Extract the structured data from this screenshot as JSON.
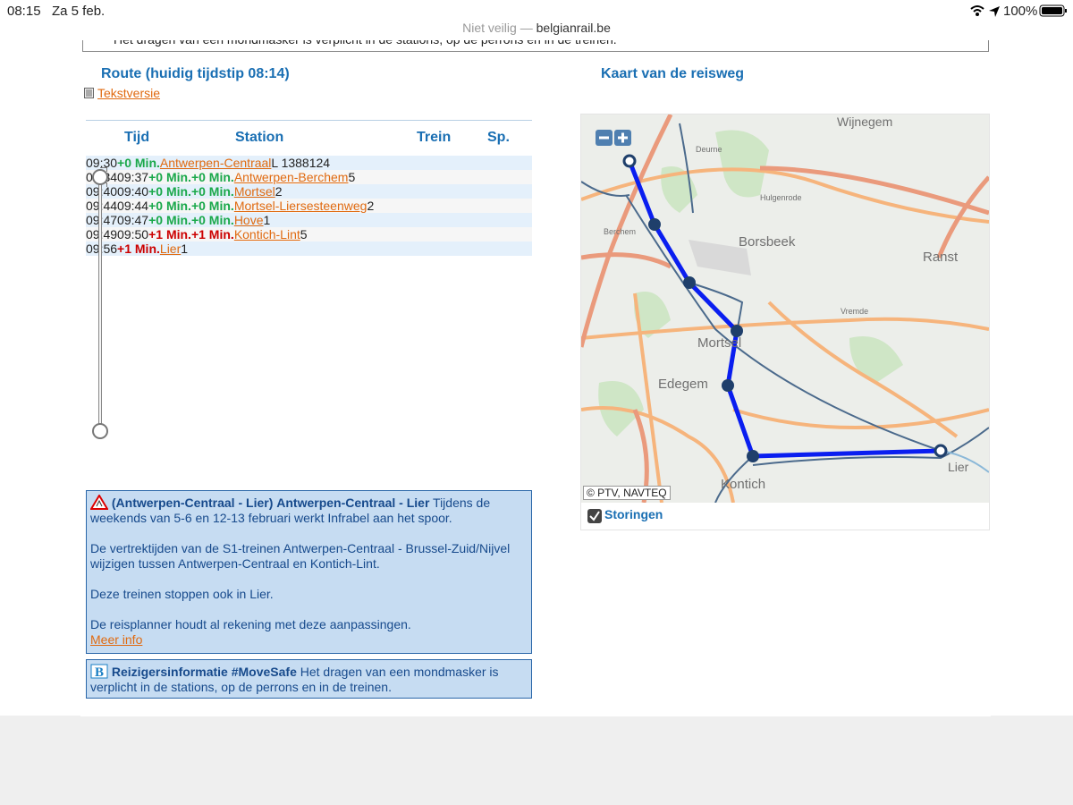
{
  "status_bar": {
    "time": "08:15",
    "date": "Za 5 feb.",
    "security": "Niet veilig —",
    "url": "belgianrail.be",
    "battery": "100%"
  },
  "top_notice": "Het dragen van een mondmasker is verplicht in de stations, op de perrons en in de treinen.",
  "route": {
    "title": "Route (huidig tijdstip 08:14)",
    "text_version": "Tekstversie",
    "headers": [
      "Tijd",
      "Station",
      "Trein",
      "Sp."
    ],
    "rows": [
      {
        "times": [
          "09:30"
        ],
        "delays": [
          "+0 Min."
        ],
        "delay_color": "#1aa84a",
        "station": "Antwerpen-Centraal",
        "train": "L 13881",
        "platform": "24"
      },
      {
        "times": [
          "09:34",
          "09:37"
        ],
        "delays": [
          "+0 Min.",
          "+0 Min."
        ],
        "delay_color": "#1aa84a",
        "station": "Antwerpen-Berchem",
        "platform": "5"
      },
      {
        "times": [
          "09:40",
          "09:40"
        ],
        "delays": [
          "+0 Min.",
          "+0 Min."
        ],
        "delay_color": "#1aa84a",
        "station": "Mortsel",
        "platform": "2"
      },
      {
        "times": [
          "09:44",
          "09:44"
        ],
        "delays": [
          "+0 Min.",
          "+0 Min."
        ],
        "delay_color": "#1aa84a",
        "station": "Mortsel-Liersesteenweg",
        "platform": "2"
      },
      {
        "times": [
          "09:47",
          "09:47"
        ],
        "delays": [
          "+0 Min.",
          "+0 Min."
        ],
        "delay_color": "#1aa84a",
        "station": "Hove",
        "platform": "1"
      },
      {
        "times": [
          "09:49",
          "09:50"
        ],
        "delays": [
          "+1 Min.",
          "+1 Min."
        ],
        "delay_color": "#cc0000",
        "station": "Kontich-Lint",
        "platform": "5"
      },
      {
        "times": [
          "09:56"
        ],
        "delays": [
          "+1 Min."
        ],
        "delay_color": "#cc0000",
        "station": "Lier",
        "platform": "1"
      }
    ]
  },
  "map": {
    "title": "Kaart van de reisweg",
    "labels": [
      "Wijnegem",
      "Deurne",
      "Hulgenrode",
      "Berchem",
      "Borsbeek",
      "Ranst",
      "Vremde",
      "Mortsel",
      "Edegem",
      "Kontich",
      "Lier"
    ],
    "copyright": "© PTV, NAVTEQ",
    "disruptions": "Storingen"
  },
  "notices": [
    {
      "route": "(Antwerpen-Centraal - Lier)",
      "title": "Antwerpen-Centraal - Lier",
      "paragraphs": [
        "Tijdens de weekends van 5-6 en 12-13 februari werkt Infrabel aan het spoor.",
        "De vertrektijden van de S1-treinen Antwerpen-Centraal - Brussel-Zuid/Nijvel wijzigen tussen Antwerpen-Centraal en Kontich-Lint.",
        "Deze treinen stoppen ook in Lier.",
        "De reisplanner houdt al rekening met deze aanpassingen."
      ],
      "link": "Meer info"
    },
    {
      "title": "Reizigersinformatie #MoveSafe",
      "text": "Het dragen van een mondmasker is verplicht in de stations, op de perrons en in de treinen."
    }
  ]
}
